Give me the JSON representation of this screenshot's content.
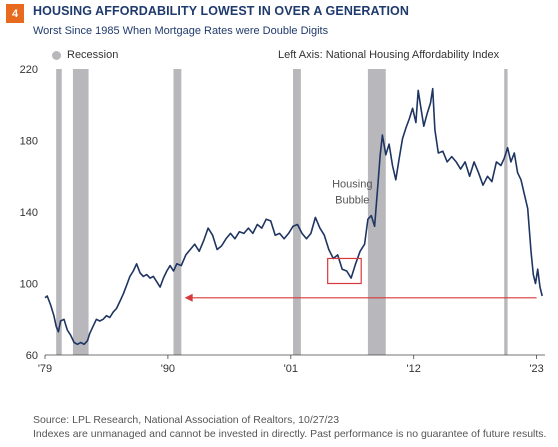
{
  "header": {
    "badge": "4",
    "title": "HOUSING AFFORDABILITY LOWEST IN OVER A GENERATION",
    "subtitle": "Worst Since 1985 When Mortgage Rates were Double Digits"
  },
  "legend": {
    "recession_label": "Recession"
  },
  "axis_note": "Left Axis: National Housing Affordability Index",
  "footer": {
    "source": "Source: LPL Research, National Association of Realtors,  10/27/23",
    "disclaimer": "Indexes are unmanaged and cannot be invested in directly. Past performance is no guarantee of future results."
  },
  "colors": {
    "line": "#1f3561",
    "recession": "#b8b8bc",
    "highlight": "#d9383a",
    "accent": "#e86a1f"
  },
  "chart_data": {
    "type": "line",
    "title": "HOUSING AFFORDABILITY LOWEST IN OVER A GENERATION",
    "subtitle": "Worst Since 1985 When Mortgage Rates were Double Digits",
    "ylabel": "National Housing Affordability Index",
    "ylim": [
      60,
      220
    ],
    "yticks": [
      60,
      100,
      140,
      180,
      220
    ],
    "xlim": [
      1979.0,
      2023.75
    ],
    "xticks": [
      {
        "x": 1979,
        "label": "'79"
      },
      {
        "x": 1990,
        "label": "'90"
      },
      {
        "x": 2001,
        "label": "'01"
      },
      {
        "x": 2012,
        "label": "'12"
      },
      {
        "x": 2023,
        "label": "'23"
      }
    ],
    "grid": false,
    "recessions": [
      [
        1980.0,
        1980.5
      ],
      [
        1981.5,
        1982.9
      ],
      [
        1990.5,
        1991.2
      ],
      [
        2001.2,
        2001.9
      ],
      [
        2007.9,
        2009.5
      ],
      [
        2020.1,
        2020.4
      ]
    ],
    "annotation": {
      "text": [
        "Housing",
        "Bubble"
      ],
      "x": 2006.5,
      "y": 146
    },
    "highlight_box": {
      "x": [
        2004.3,
        2007.3
      ],
      "y": [
        100,
        114
      ]
    },
    "reference_arrow": {
      "y": 92,
      "from_x": 2023.0,
      "to_x": 1991.5
    },
    "series": [
      {
        "values": [
          [
            1979.0,
            92
          ],
          [
            1979.2,
            93
          ],
          [
            1979.5,
            88
          ],
          [
            1979.8,
            82
          ],
          [
            1980.0,
            76
          ],
          [
            1980.2,
            73
          ],
          [
            1980.4,
            79
          ],
          [
            1980.7,
            80
          ],
          [
            1981.0,
            74
          ],
          [
            1981.3,
            71
          ],
          [
            1981.6,
            67
          ],
          [
            1981.9,
            66
          ],
          [
            1982.2,
            67
          ],
          [
            1982.5,
            66
          ],
          [
            1982.8,
            68
          ],
          [
            1983.0,
            72
          ],
          [
            1983.3,
            76
          ],
          [
            1983.6,
            80
          ],
          [
            1983.9,
            79
          ],
          [
            1984.2,
            80
          ],
          [
            1984.5,
            82
          ],
          [
            1984.8,
            81
          ],
          [
            1985.1,
            84
          ],
          [
            1985.4,
            86
          ],
          [
            1985.7,
            90
          ],
          [
            1986.0,
            94
          ],
          [
            1986.3,
            99
          ],
          [
            1986.6,
            104
          ],
          [
            1986.9,
            107
          ],
          [
            1987.2,
            111
          ],
          [
            1987.5,
            106
          ],
          [
            1987.8,
            104
          ],
          [
            1988.1,
            105
          ],
          [
            1988.4,
            103
          ],
          [
            1988.7,
            104
          ],
          [
            1989.0,
            101
          ],
          [
            1989.3,
            98
          ],
          [
            1989.6,
            103
          ],
          [
            1989.9,
            107
          ],
          [
            1990.2,
            110
          ],
          [
            1990.5,
            107
          ],
          [
            1990.8,
            111
          ],
          [
            1991.2,
            110
          ],
          [
            1991.6,
            116
          ],
          [
            1992.0,
            119
          ],
          [
            1992.4,
            122
          ],
          [
            1992.8,
            118
          ],
          [
            1993.2,
            124
          ],
          [
            1993.6,
            131
          ],
          [
            1994.0,
            127
          ],
          [
            1994.4,
            119
          ],
          [
            1994.8,
            121
          ],
          [
            1995.2,
            125
          ],
          [
            1995.6,
            128
          ],
          [
            1996.0,
            125
          ],
          [
            1996.4,
            129
          ],
          [
            1996.8,
            128
          ],
          [
            1997.2,
            131
          ],
          [
            1997.6,
            128
          ],
          [
            1998.0,
            133
          ],
          [
            1998.4,
            131
          ],
          [
            1998.8,
            136
          ],
          [
            1999.2,
            135
          ],
          [
            1999.6,
            127
          ],
          [
            2000.0,
            128
          ],
          [
            2000.4,
            125
          ],
          [
            2000.8,
            128
          ],
          [
            2001.2,
            132
          ],
          [
            2001.6,
            133
          ],
          [
            2002.0,
            128
          ],
          [
            2002.4,
            125
          ],
          [
            2002.8,
            128
          ],
          [
            2003.2,
            137
          ],
          [
            2003.6,
            131
          ],
          [
            2004.0,
            127
          ],
          [
            2004.4,
            119
          ],
          [
            2004.8,
            114
          ],
          [
            2005.2,
            116
          ],
          [
            2005.6,
            108
          ],
          [
            2006.0,
            107
          ],
          [
            2006.4,
            103
          ],
          [
            2006.8,
            111
          ],
          [
            2007.2,
            118
          ],
          [
            2007.6,
            122
          ],
          [
            2007.9,
            136
          ],
          [
            2008.2,
            138
          ],
          [
            2008.5,
            132
          ],
          [
            2008.8,
            156
          ],
          [
            2009.0,
            172
          ],
          [
            2009.2,
            183
          ],
          [
            2009.5,
            172
          ],
          [
            2009.8,
            178
          ],
          [
            2010.1,
            166
          ],
          [
            2010.4,
            158
          ],
          [
            2010.7,
            170
          ],
          [
            2011.0,
            181
          ],
          [
            2011.3,
            187
          ],
          [
            2011.6,
            192
          ],
          [
            2011.9,
            198
          ],
          [
            2012.2,
            190
          ],
          [
            2012.4,
            208
          ],
          [
            2012.6,
            200
          ],
          [
            2012.9,
            188
          ],
          [
            2013.2,
            195
          ],
          [
            2013.5,
            201
          ],
          [
            2013.7,
            209
          ],
          [
            2013.9,
            186
          ],
          [
            2014.2,
            173
          ],
          [
            2014.6,
            174
          ],
          [
            2015.0,
            168
          ],
          [
            2015.4,
            171
          ],
          [
            2015.8,
            168
          ],
          [
            2016.2,
            164
          ],
          [
            2016.6,
            168
          ],
          [
            2017.0,
            160
          ],
          [
            2017.4,
            168
          ],
          [
            2017.8,
            162
          ],
          [
            2018.2,
            155
          ],
          [
            2018.6,
            160
          ],
          [
            2019.0,
            157
          ],
          [
            2019.4,
            168
          ],
          [
            2019.8,
            166
          ],
          [
            2020.1,
            170
          ],
          [
            2020.4,
            176
          ],
          [
            2020.7,
            168
          ],
          [
            2021.0,
            173
          ],
          [
            2021.3,
            162
          ],
          [
            2021.6,
            158
          ],
          [
            2021.9,
            150
          ],
          [
            2022.2,
            142
          ],
          [
            2022.5,
            118
          ],
          [
            2022.7,
            105
          ],
          [
            2022.9,
            100
          ],
          [
            2023.1,
            108
          ],
          [
            2023.3,
            98
          ],
          [
            2023.5,
            93
          ]
        ]
      }
    ]
  }
}
